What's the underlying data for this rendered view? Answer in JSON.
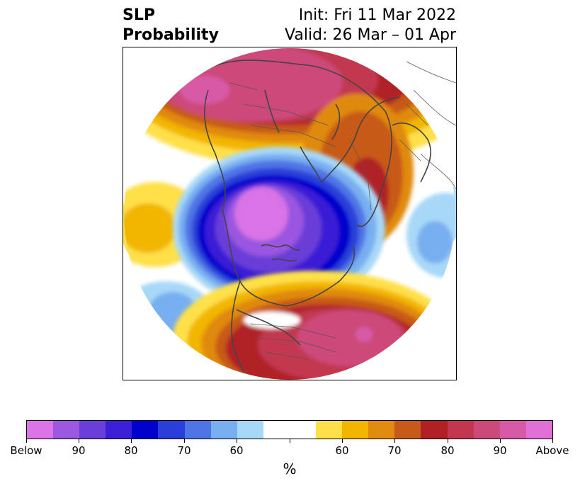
{
  "title": {
    "line1": "SLP",
    "line2": "Probability",
    "init": "Init: Fri 11 Mar 2022",
    "valid": "Valid: 26 Mar – 01 Apr"
  },
  "colorbar": {
    "colors": [
      "#d973e6",
      "#9a57e0",
      "#6a3ed8",
      "#3b1fd6",
      "#0000cc",
      "#2a3fd9",
      "#4f74e6",
      "#78aff0",
      "#a8d8f8",
      "#ffffff",
      "#ffe04a",
      "#f2b600",
      "#e08a10",
      "#c75a18",
      "#b02025",
      "#c2374f",
      "#cc4a7a",
      "#d85aa6",
      "#e06fd6"
    ],
    "tick_labels": [
      "Below",
      "90",
      "80",
      "70",
      "60",
      "60",
      "70",
      "80",
      "90",
      "Above"
    ],
    "unit": "%"
  }
}
